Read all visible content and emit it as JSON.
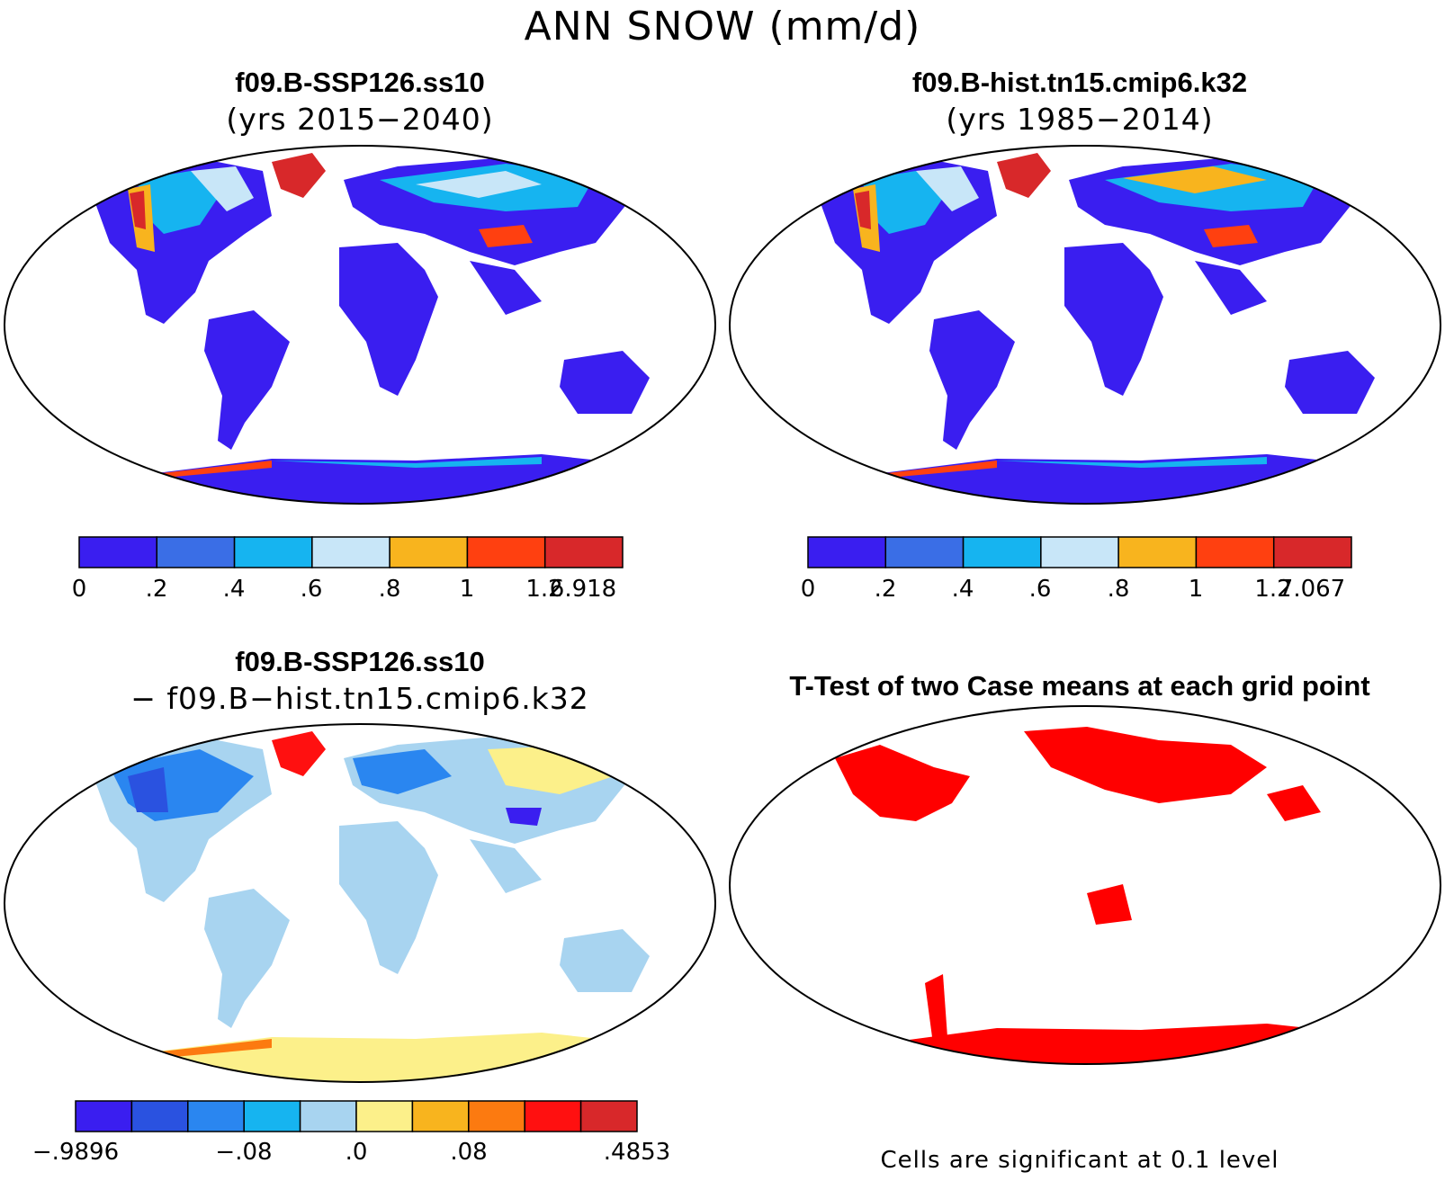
{
  "figure": {
    "title": "ANN SNOW (mm/d)"
  },
  "panels": {
    "top_left": {
      "case": "f09.B-SSP126.ss10",
      "years": "(yrs 2015−2040)",
      "colorbar": {
        "ticks": [
          "0",
          ".2",
          ".4",
          ".6",
          ".8",
          "1",
          "1.2",
          "6.918"
        ],
        "colors": [
          "#3a1ef0",
          "#3a6ee6",
          "#16b4f0",
          "#c8e6f8",
          "#f8b41e",
          "#ff4010",
          "#d8282a"
        ]
      }
    },
    "top_right": {
      "case": "f09.B-hist.tn15.cmip6.k32",
      "years": "(yrs 1985−2014)",
      "colorbar": {
        "ticks": [
          "0",
          ".2",
          ".4",
          ".6",
          ".8",
          "1",
          "1.2",
          "7.067"
        ],
        "colors": [
          "#3a1ef0",
          "#3a6ee6",
          "#16b4f0",
          "#c8e6f8",
          "#f8b41e",
          "#ff4010",
          "#d8282a"
        ]
      }
    },
    "bottom_left": {
      "case": "f09.B-SSP126.ss10",
      "minus_case": "− f09.B−hist.tn15.cmip6.k32",
      "colorbar": {
        "ticks": [
          "−.9896",
          "−.08",
          ".0",
          ".08",
          ".4853"
        ],
        "colors": [
          "#3a1ef0",
          "#2a52e0",
          "#2a86f0",
          "#16b4f0",
          "#a8d4f0",
          "#fcf08a",
          "#f8b41e",
          "#fc7a10",
          "#ff1010",
          "#d8282a"
        ]
      }
    },
    "bottom_right": {
      "title": "T-Test of two Case means at each grid point",
      "note": "Cells are significant at 0.1 level",
      "significant_color": "#ff0000"
    }
  }
}
